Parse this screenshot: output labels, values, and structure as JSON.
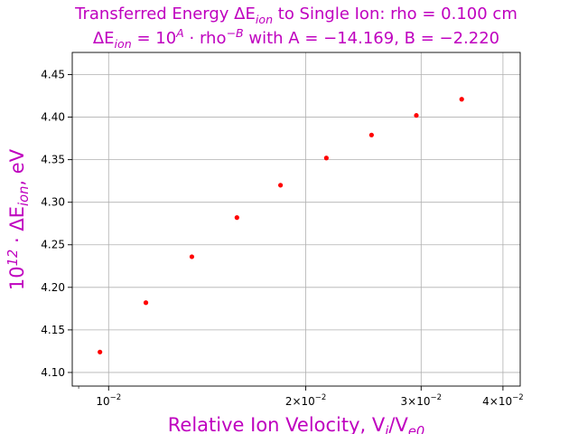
{
  "chart_data": {
    "type": "scatter",
    "title_line1": "Transferred Energy ΔE_ion to Single Ion: rho = 0.100 cm",
    "title_line2": "ΔE_ion = 10^A · rho^−B with A = −14.169, B = −2.220",
    "xlabel": "Relative Ion Velocity, V_i/V_e0",
    "ylabel": "10^12 · ΔE_ion, eV",
    "x_scale": "log",
    "xlim": [
      0.0088,
      0.0425
    ],
    "ylim": [
      4.084,
      4.476
    ],
    "grid": true,
    "x_ticks": [
      {
        "value": 0.01,
        "base": "10",
        "exp": "−2"
      },
      {
        "value": 0.02,
        "base": "2×10",
        "exp": "−2"
      },
      {
        "value": 0.03,
        "base": "3×10",
        "exp": "−2"
      },
      {
        "value": 0.04,
        "base": "4×10",
        "exp": "−2"
      }
    ],
    "y_ticks": [
      "4.10",
      "4.15",
      "4.20",
      "4.25",
      "4.30",
      "4.35",
      "4.40",
      "4.45"
    ],
    "marker_color": "#ff0000",
    "series": [
      {
        "x": [
          0.0097,
          0.0114,
          0.0134,
          0.0157,
          0.0183,
          0.0215,
          0.0252,
          0.0295,
          0.0346
        ],
        "y": [
          4.124,
          4.182,
          4.236,
          4.282,
          4.32,
          4.352,
          4.379,
          4.402,
          4.421
        ]
      }
    ]
  },
  "colors": {
    "title": "#bf00bf",
    "grid": "#b0b0b0",
    "marker": "#ff0000"
  }
}
